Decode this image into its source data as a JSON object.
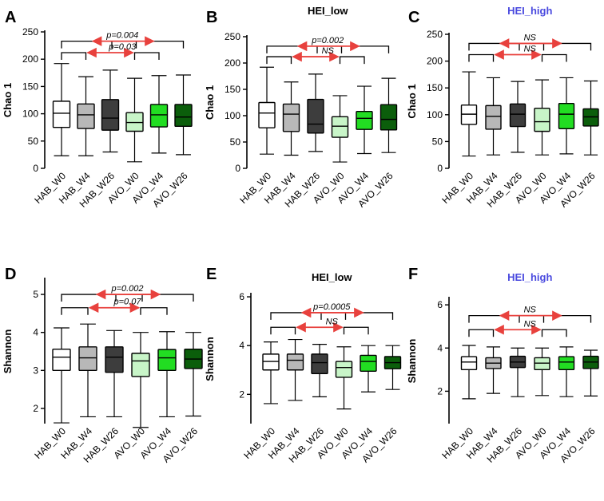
{
  "figure": {
    "categories": [
      "HAB_W0",
      "HAB_W4",
      "HAB_W26",
      "AVO_W0",
      "AVO_W4",
      "AVO_W26"
    ],
    "box_colors": [
      "#ffffff",
      "#b8b8b8",
      "#3d3d3d",
      "#c8f5c8",
      "#22dd22",
      "#0b5e0b"
    ],
    "arrow_color": "#e8413d",
    "title_colors": {
      "HEI_low": "#000000",
      "HEI_high": "#4a4adf"
    }
  },
  "chart_data": [
    {
      "type": "boxplot",
      "panel": "A",
      "title": "",
      "title_color": "#000000",
      "ylabel": "Chao 1",
      "ylim": [
        0,
        250
      ],
      "yticks": [
        0,
        50,
        100,
        150,
        200,
        250
      ],
      "series": [
        {
          "name": "HAB_W0",
          "min": 23,
          "q1": 75,
          "median": 101,
          "q3": 123,
          "max": 192
        },
        {
          "name": "HAB_W4",
          "min": 23,
          "q1": 73,
          "median": 98,
          "q3": 118,
          "max": 168
        },
        {
          "name": "HAB_W26",
          "min": 30,
          "q1": 70,
          "median": 92,
          "q3": 126,
          "max": 180
        },
        {
          "name": "AVO_W0",
          "min": 12,
          "q1": 68,
          "median": 84,
          "q3": 102,
          "max": 165
        },
        {
          "name": "AVO_W4",
          "min": 28,
          "q1": 76,
          "median": 98,
          "q3": 117,
          "max": 170
        },
        {
          "name": "AVO_W26",
          "min": 25,
          "q1": 77,
          "median": 94,
          "q3": 117,
          "max": 171
        }
      ],
      "comparisons": [
        {
          "label": "p=0.004",
          "level": "outer",
          "y": 233
        },
        {
          "label": "p=0.03",
          "level": "inner",
          "y": 212
        }
      ]
    },
    {
      "type": "boxplot",
      "panel": "B",
      "title": "HEI_low",
      "title_color": "#000000",
      "ylabel": "Chao 1",
      "ylim": [
        0,
        250
      ],
      "yticks": [
        0,
        50,
        100,
        150,
        200,
        250
      ],
      "series": [
        {
          "name": "HAB_W0",
          "min": 27,
          "q1": 77,
          "median": 105,
          "q3": 125,
          "max": 192
        },
        {
          "name": "HAB_W4",
          "min": 25,
          "q1": 70,
          "median": 103,
          "q3": 122,
          "max": 164
        },
        {
          "name": "HAB_W26",
          "min": 32,
          "q1": 67,
          "median": 84,
          "q3": 131,
          "max": 179
        },
        {
          "name": "AVO_W0",
          "min": 12,
          "q1": 59,
          "median": 80,
          "q3": 98,
          "max": 138
        },
        {
          "name": "AVO_W4",
          "min": 28,
          "q1": 74,
          "median": 95,
          "q3": 108,
          "max": 156
        },
        {
          "name": "AVO_W26",
          "min": 30,
          "q1": 73,
          "median": 93,
          "q3": 121,
          "max": 171
        }
      ],
      "comparisons": [
        {
          "label": "p=0.002",
          "level": "outer",
          "y": 232
        },
        {
          "label": "NS",
          "level": "inner",
          "y": 212
        }
      ]
    },
    {
      "type": "boxplot",
      "panel": "C",
      "title": "HEI_high",
      "title_color": "#4a4adf",
      "ylabel": "Chao 1",
      "ylim": [
        0,
        250
      ],
      "yticks": [
        0,
        50,
        100,
        150,
        200,
        250
      ],
      "series": [
        {
          "name": "HAB_W0",
          "min": 23,
          "q1": 82,
          "median": 101,
          "q3": 118,
          "max": 180
        },
        {
          "name": "HAB_W4",
          "min": 25,
          "q1": 73,
          "median": 97,
          "q3": 117,
          "max": 169
        },
        {
          "name": "HAB_W26",
          "min": 30,
          "q1": 78,
          "median": 101,
          "q3": 120,
          "max": 162
        },
        {
          "name": "AVO_W0",
          "min": 25,
          "q1": 69,
          "median": 87,
          "q3": 112,
          "max": 165
        },
        {
          "name": "AVO_W4",
          "min": 27,
          "q1": 74,
          "median": 101,
          "q3": 121,
          "max": 169
        },
        {
          "name": "AVO_W26",
          "min": 25,
          "q1": 79,
          "median": 96,
          "q3": 111,
          "max": 163
        }
      ],
      "comparisons": [
        {
          "label": "NS",
          "level": "outer",
          "y": 233
        },
        {
          "label": "NS",
          "level": "inner",
          "y": 212
        }
      ]
    },
    {
      "type": "boxplot",
      "panel": "D",
      "title": "",
      "title_color": "#000000",
      "ylabel": "Shannon",
      "ylim": [
        1.6,
        5.4
      ],
      "yticks": [
        2,
        3,
        4,
        5
      ],
      "series": [
        {
          "name": "HAB_W0",
          "min": 1.62,
          "q1": 3.0,
          "median": 3.35,
          "q3": 3.56,
          "max": 4.12
        },
        {
          "name": "HAB_W4",
          "min": 1.78,
          "q1": 3.0,
          "median": 3.33,
          "q3": 3.62,
          "max": 4.22
        },
        {
          "name": "HAB_W26",
          "min": 1.78,
          "q1": 2.95,
          "median": 3.35,
          "q3": 3.62,
          "max": 4.05
        },
        {
          "name": "AVO_W0",
          "min": 1.5,
          "q1": 2.84,
          "median": 3.25,
          "q3": 3.45,
          "max": 4.0
        },
        {
          "name": "AVO_W4",
          "min": 1.78,
          "q1": 3.0,
          "median": 3.33,
          "q3": 3.55,
          "max": 4.02
        },
        {
          "name": "AVO_W26",
          "min": 1.8,
          "q1": 3.05,
          "median": 3.3,
          "q3": 3.56,
          "max": 4.0
        }
      ],
      "comparisons": [
        {
          "label": "p=0.002",
          "level": "outer",
          "y": 5.0
        },
        {
          "label": "p=0.07",
          "level": "inner",
          "y": 4.65
        }
      ]
    },
    {
      "type": "boxplot",
      "panel": "E",
      "title": "HEI_low",
      "title_color": "#000000",
      "ylabel": "Shannon",
      "ylim": [
        0.8,
        6.1
      ],
      "yticks": [
        2,
        4,
        6
      ],
      "series": [
        {
          "name": "HAB_W0",
          "min": 1.62,
          "q1": 3.0,
          "median": 3.35,
          "q3": 3.65,
          "max": 4.15
        },
        {
          "name": "HAB_W4",
          "min": 1.75,
          "q1": 3.0,
          "median": 3.4,
          "q3": 3.65,
          "max": 4.25
        },
        {
          "name": "HAB_W26",
          "min": 1.9,
          "q1": 2.85,
          "median": 3.3,
          "q3": 3.65,
          "max": 4.05
        },
        {
          "name": "AVO_W0",
          "min": 1.4,
          "q1": 2.7,
          "median": 3.1,
          "q3": 3.35,
          "max": 3.95
        },
        {
          "name": "AVO_W4",
          "min": 2.1,
          "q1": 2.95,
          "median": 3.35,
          "q3": 3.6,
          "max": 4.0
        },
        {
          "name": "AVO_W26",
          "min": 2.2,
          "q1": 3.05,
          "median": 3.3,
          "q3": 3.55,
          "max": 4.0
        }
      ],
      "comparisons": [
        {
          "label": "p=0.0005",
          "level": "outer",
          "y": 5.35
        },
        {
          "label": "NS",
          "level": "inner",
          "y": 4.75
        }
      ]
    },
    {
      "type": "boxplot",
      "panel": "F",
      "title": "HEI_high",
      "title_color": "#4a4adf",
      "ylabel": "Shannon",
      "ylim": [
        0.5,
        6.3
      ],
      "yticks": [
        2,
        4,
        6
      ],
      "series": [
        {
          "name": "HAB_W0",
          "min": 1.65,
          "q1": 3.0,
          "median": 3.35,
          "q3": 3.6,
          "max": 4.12
        },
        {
          "name": "HAB_W4",
          "min": 1.9,
          "q1": 3.05,
          "median": 3.3,
          "q3": 3.55,
          "max": 4.05
        },
        {
          "name": "HAB_W26",
          "min": 1.75,
          "q1": 3.1,
          "median": 3.35,
          "q3": 3.62,
          "max": 4.0
        },
        {
          "name": "AVO_W0",
          "min": 1.8,
          "q1": 3.0,
          "median": 3.3,
          "q3": 3.55,
          "max": 4.0
        },
        {
          "name": "AVO_W4",
          "min": 1.75,
          "q1": 3.0,
          "median": 3.35,
          "q3": 3.6,
          "max": 4.05
        },
        {
          "name": "AVO_W26",
          "min": 1.78,
          "q1": 3.05,
          "median": 3.35,
          "q3": 3.62,
          "max": 3.9
        }
      ],
      "comparisons": [
        {
          "label": "NS",
          "level": "outer",
          "y": 5.5
        },
        {
          "label": "NS",
          "level": "inner",
          "y": 4.85
        }
      ]
    }
  ]
}
